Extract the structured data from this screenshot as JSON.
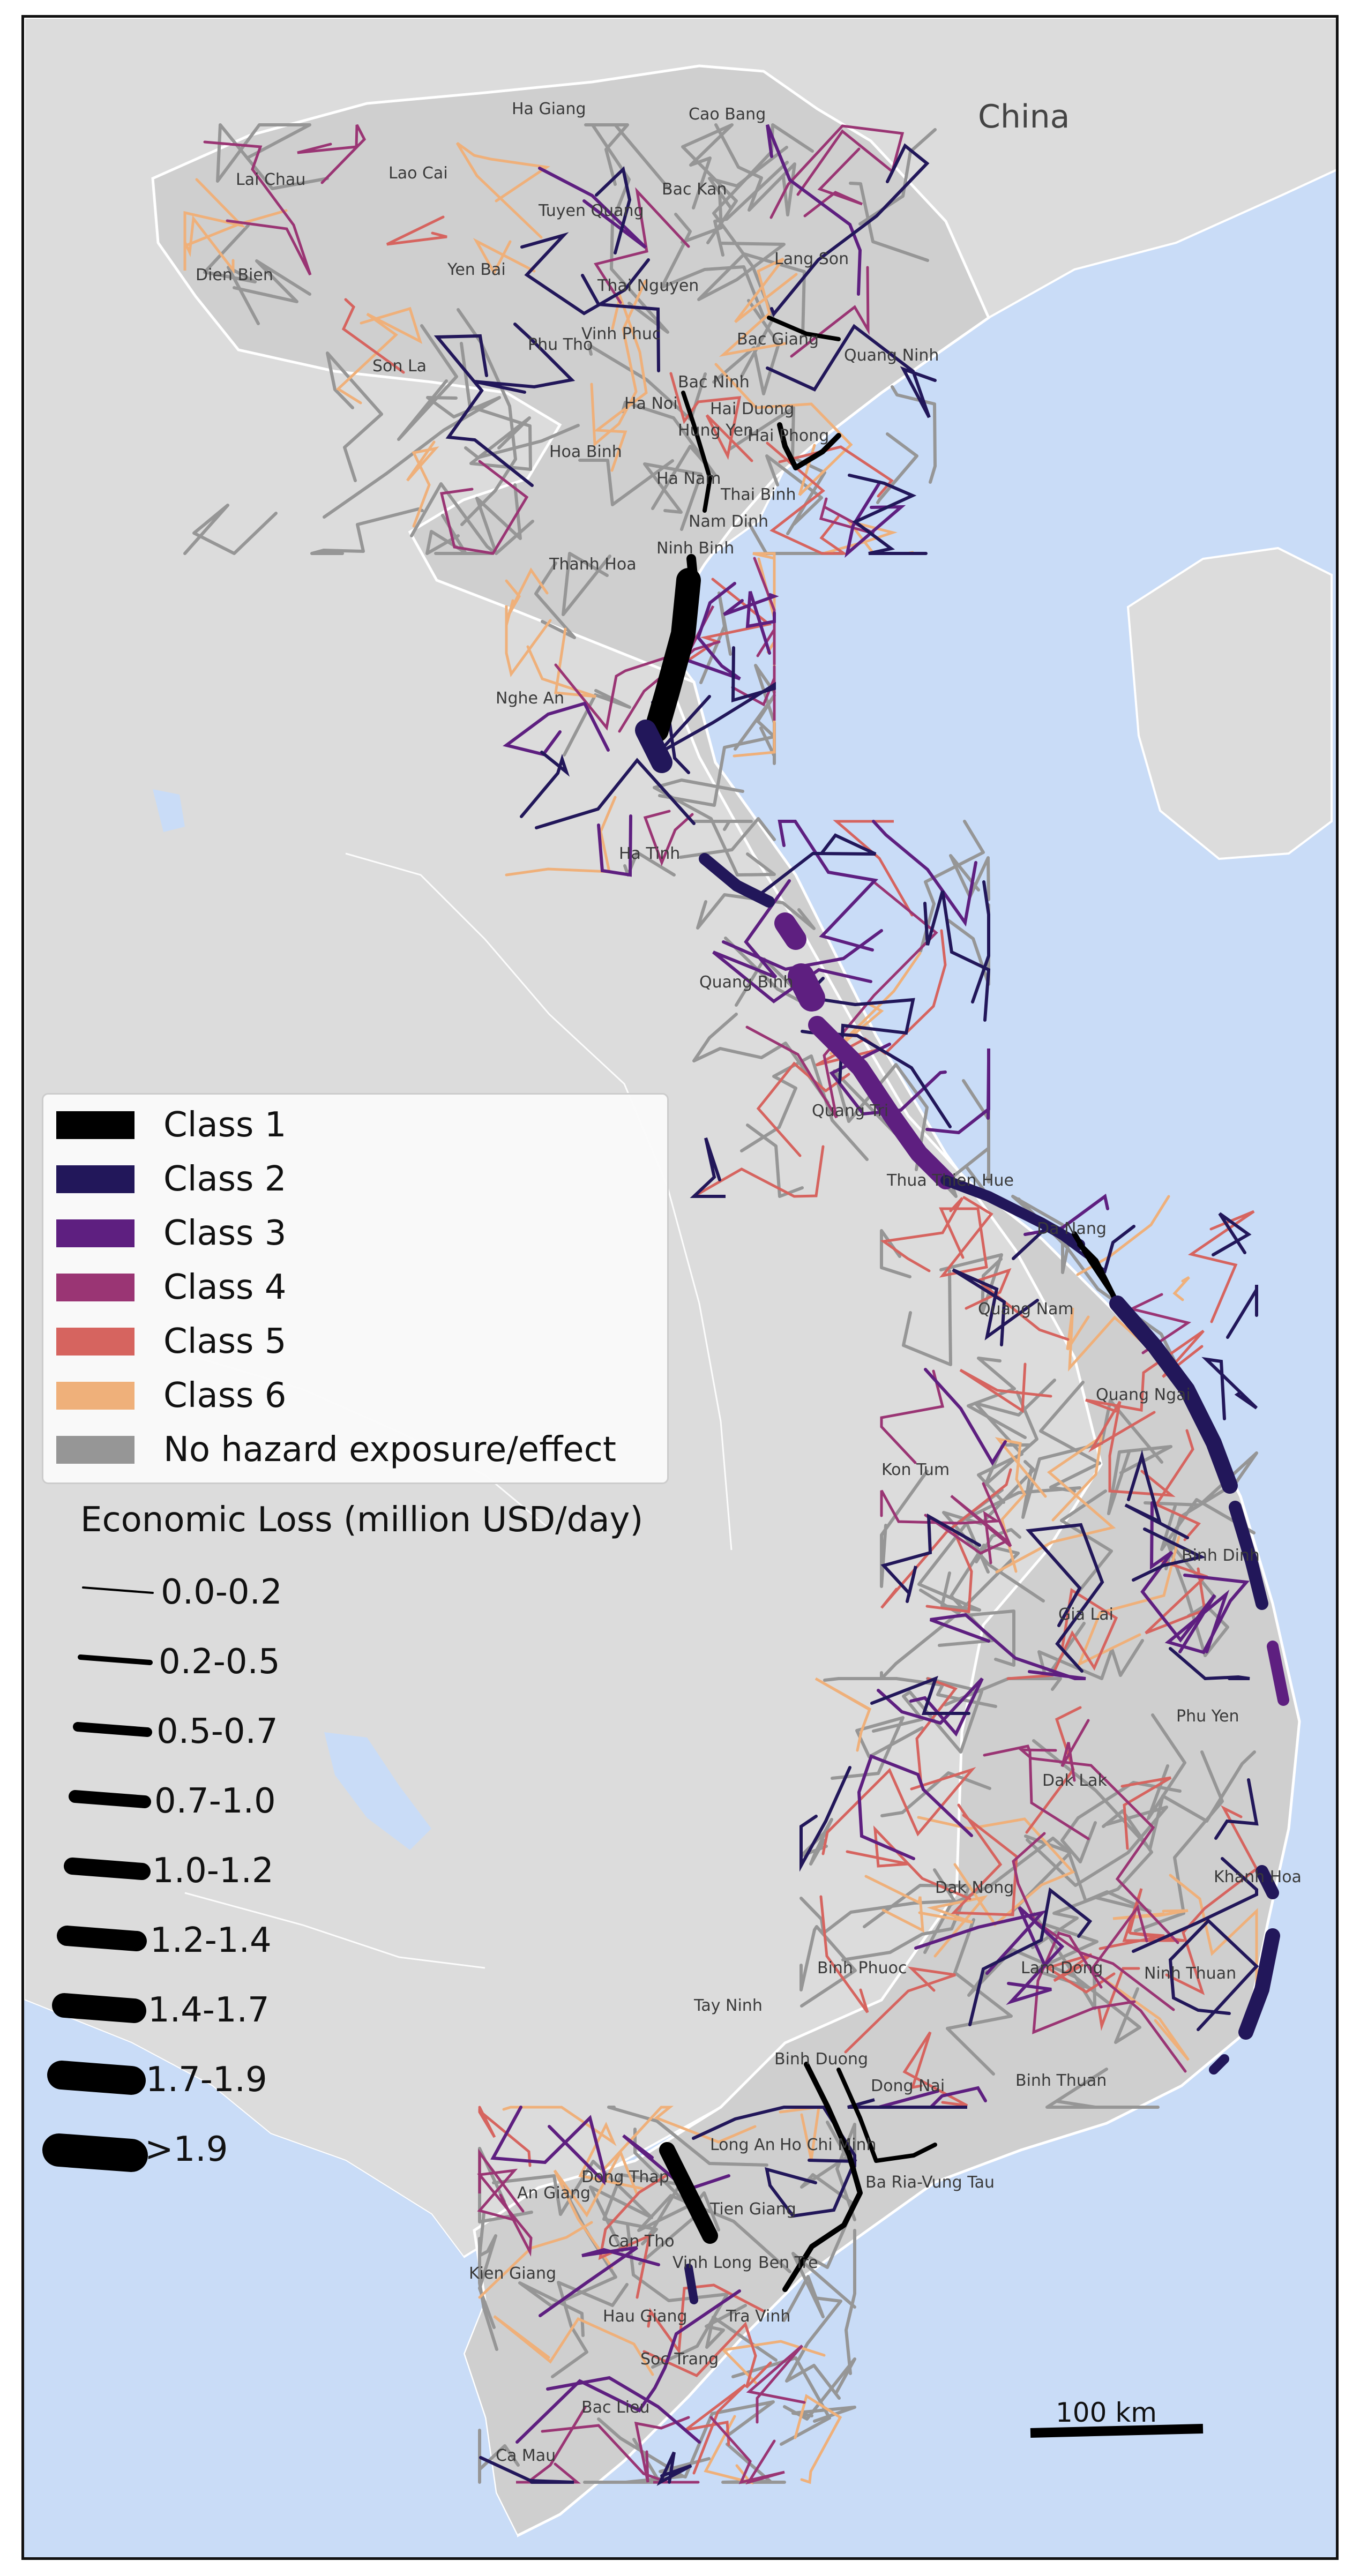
{
  "country_label": "China",
  "provinces": [
    "Ha Giang",
    "Cao Bang",
    "Lai Chau",
    "Lao Cai",
    "Tuyen Quang",
    "Bac Kan",
    "Lang Son",
    "Dien Bien",
    "Yen Bai",
    "Thai Nguyen",
    "Bac Giang",
    "Quang Ninh",
    "Son La",
    "Phu Tho",
    "Vinh Phuc",
    "Bac Ninh",
    "Ha Noi",
    "Hai Duong",
    "Hung Yen",
    "Hai Phong",
    "Hoa Binh",
    "Ha Nam",
    "Thai Binh",
    "Nam Dinh",
    "Ninh Binh",
    "Thanh Hoa",
    "Nghe An",
    "Ha Tinh",
    "Quang Binh",
    "Quang Tri",
    "Thua Thien Hue",
    "Da Nang",
    "Quang Nam",
    "Quang Ngai",
    "Kon Tum",
    "Binh Dinh",
    "Gia Lai",
    "Phu Yen",
    "Dak Lak",
    "Khanh Hoa",
    "Dak Nong",
    "Lam Dong",
    "Ninh Thuan",
    "Binh Phuoc",
    "Tay Ninh",
    "Binh Duong",
    "Dong Nai",
    "Binh Thuan",
    "Long An",
    "Ho Chi Minh",
    "Ba Ria-Vung Tau",
    "Dong Thap",
    "An Giang",
    "Tien Giang",
    "Can Tho",
    "Vinh Long",
    "Ben Tre",
    "Kien Giang",
    "Hau Giang",
    "Tra Vinh",
    "Soc Trang",
    "Bac Lieu",
    "Ca Mau"
  ],
  "legend": {
    "hazard_classes": [
      {
        "label": "Class 1",
        "color": "#000004"
      },
      {
        "label": "Class 2",
        "color": "#221150"
      },
      {
        "label": "Class 3",
        "color": "#5f187f"
      },
      {
        "label": "Class 4",
        "color": "#982d80"
      },
      {
        "label": "Class 5",
        "color": "#d3436e"
      },
      {
        "label": "Class 6",
        "color": "#f8765c"
      },
      {
        "label": "No hazard exposure/effect",
        "color": "#999999"
      }
    ],
    "class_colors_render": [
      "#000000",
      "#22175a",
      "#5e1f80",
      "#9a3574",
      "#d6645f",
      "#efb07a",
      "#969696"
    ],
    "loss_title": "Economic Loss (million USD/day)",
    "loss_bins": [
      "0.0-0.2",
      "0.2-0.5",
      "0.5-0.7",
      "0.7-1.0",
      "1.0-1.2",
      "1.2-1.4",
      "1.4-1.7",
      "1.7-1.9",
      ">1.9"
    ]
  },
  "scale_bar": {
    "label": "100 km"
  },
  "colors": {
    "sea": "#c9dcf7",
    "land_other": "#dcdcdc",
    "land_vietnam": "#cfcfcf",
    "border": "#ffffff"
  }
}
